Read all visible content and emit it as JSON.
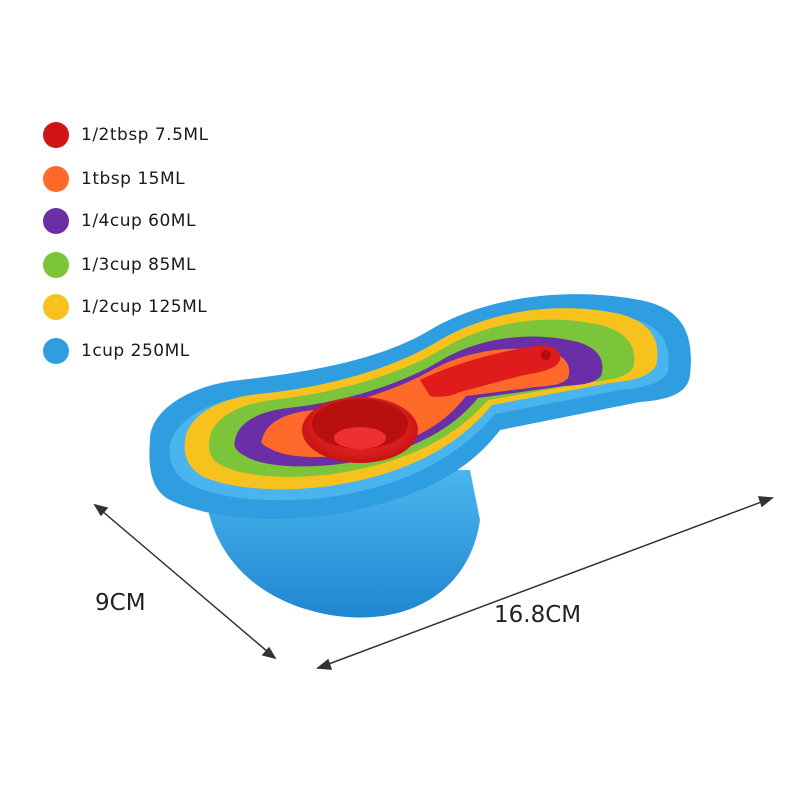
{
  "legend": [
    {
      "label": "1/2tbsp 7.5ML",
      "color": "#d01414"
    },
    {
      "label": "1tbsp 15ML",
      "color": "#ff6a2a"
    },
    {
      "label": "1/4cup 60ML",
      "color": "#6a2fa6"
    },
    {
      "label": "1/3cup 85ML",
      "color": "#7cc43a"
    },
    {
      "label": "1/2cup 125ML",
      "color": "#f8c21e"
    },
    {
      "label": "1cup 250ML",
      "color": "#2f9ee0"
    }
  ],
  "dimensions": {
    "width_label": "9CM",
    "length_label": "16.8CM"
  }
}
